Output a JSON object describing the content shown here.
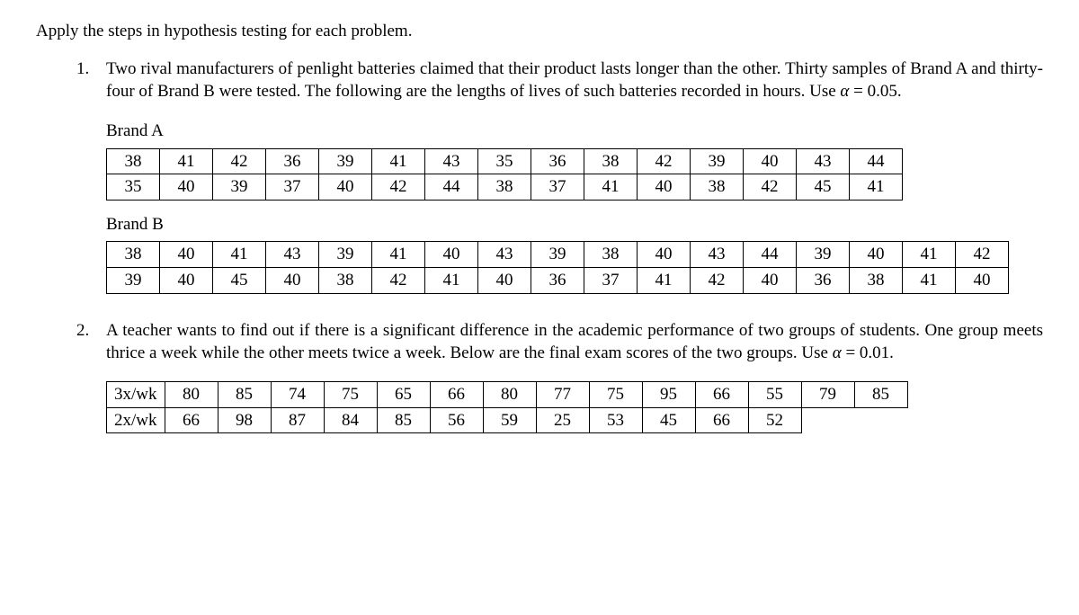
{
  "intro": "Apply the steps in hypothesis testing for each problem.",
  "p1": {
    "text_a": "Two rival manufacturers of penlight batteries claimed that their product lasts longer than the other. Thirty samples of Brand A and thirty-four of Brand B were tested. The following are the lengths of lives of such batteries recorded in hours. Use ",
    "alpha_sym": "α",
    "text_b": " = 0.05.",
    "brandA_label": "Brand A",
    "brandA": {
      "rows": [
        [
          "38",
          "41",
          "42",
          "36",
          "39",
          "41",
          "43",
          "35",
          "36",
          "38",
          "42",
          "39",
          "40",
          "43",
          "44"
        ],
        [
          "35",
          "40",
          "39",
          "37",
          "40",
          "42",
          "44",
          "38",
          "37",
          "41",
          "40",
          "38",
          "42",
          "45",
          "41"
        ]
      ]
    },
    "brandB_label": "Brand B",
    "brandB": {
      "rows": [
        [
          "38",
          "40",
          "41",
          "43",
          "39",
          "41",
          "40",
          "43",
          "39",
          "38",
          "40",
          "43",
          "44",
          "39",
          "40",
          "41",
          "42"
        ],
        [
          "39",
          "40",
          "45",
          "40",
          "38",
          "42",
          "41",
          "40",
          "36",
          "37",
          "41",
          "42",
          "40",
          "36",
          "38",
          "41",
          "40"
        ]
      ]
    }
  },
  "p2": {
    "text_a": "A teacher wants to find out if there is a significant difference in the academic performance of two groups of students. One group meets thrice a week while the other meets twice a week. Below are the final exam scores of the two groups. Use ",
    "alpha_sym": "α",
    "text_b": " = 0.01.",
    "table": {
      "row1_label": "3x/wk",
      "row2_label": "2x/wk",
      "row1": [
        "80",
        "85",
        "74",
        "75",
        "65",
        "66",
        "80",
        "77",
        "75",
        "95",
        "66",
        "55",
        "79",
        "85"
      ],
      "row2": [
        "66",
        "98",
        "87",
        "84",
        "85",
        "56",
        "59",
        "25",
        "53",
        "45",
        "66",
        "52"
      ]
    }
  }
}
